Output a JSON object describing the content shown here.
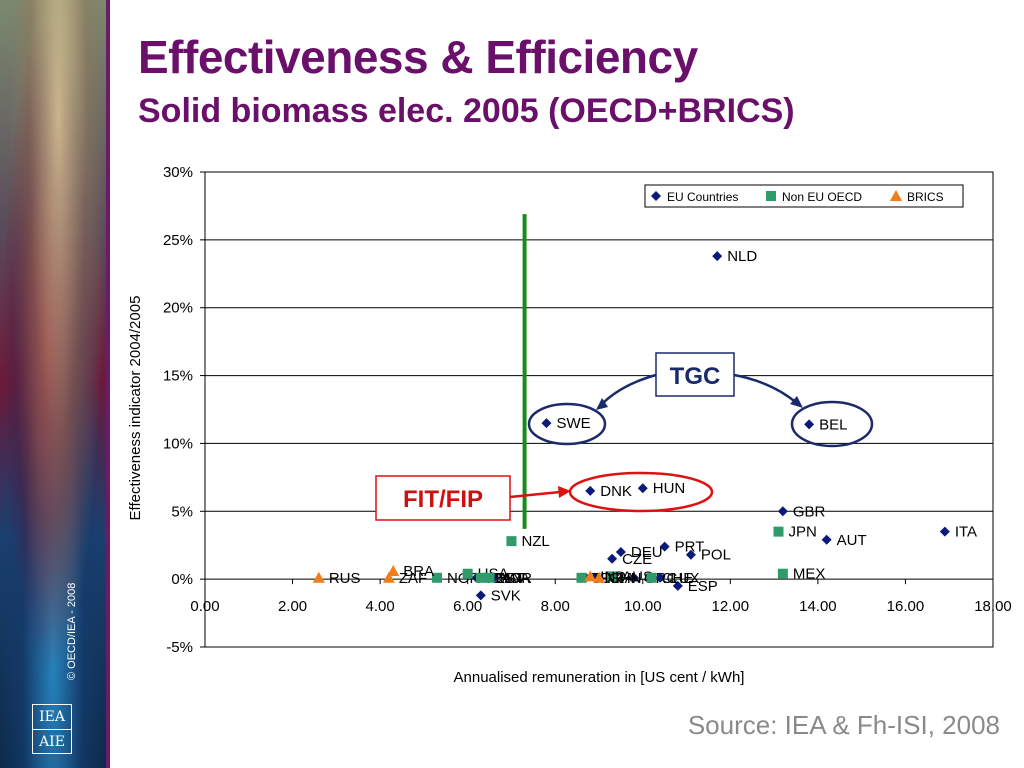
{
  "slide": {
    "title": "Effectiveness & Efficiency",
    "subtitle": "Solid biomass elec. 2005 (OECD+BRICS)",
    "source": "Source: IEA & Fh-ISI, 2008",
    "copyright": "© OECD/IEA - 2008",
    "logo_lines": [
      "IEA",
      "AIE"
    ]
  },
  "annotations": {
    "tgc_label": "TGC",
    "fit_label": "FIT/FIP",
    "threshold_x": 7.3
  },
  "colors": {
    "title": "#6a0f6a",
    "eu": "#0a1a7a",
    "non_eu_oecd": "#2f9a6a",
    "brics": "#f07d1a",
    "threshold_line": "#1a8a1a",
    "tgc_ellipse": "#1a2a6a",
    "fit_ellipse": "#dd1111"
  },
  "chart_data": {
    "type": "scatter",
    "xlabel": "Annualised remuneration in [US cent / kWh]",
    "ylabel": "Effectiveness indicator 2004/2005",
    "xlim": [
      0,
      18
    ],
    "ylim": [
      -5,
      30
    ],
    "xticks": [
      "0.00",
      "2.00",
      "4.00",
      "6.00",
      "8.00",
      "10.00",
      "12.00",
      "14.00",
      "16.00",
      "18.00"
    ],
    "yticks": [
      "30%",
      "25%",
      "20%",
      "15%",
      "10%",
      "5%",
      "0%",
      "-5%"
    ],
    "grid": true,
    "legend_position": "top-right",
    "series": [
      {
        "name": "EU Countries",
        "marker": "diamond",
        "points": [
          {
            "label": "NLD",
            "x": 11.7,
            "y": 23.8
          },
          {
            "label": "SWE",
            "x": 7.8,
            "y": 11.5
          },
          {
            "label": "BEL",
            "x": 13.8,
            "y": 11.4
          },
          {
            "label": "DNK",
            "x": 8.8,
            "y": 6.5
          },
          {
            "label": "HUN",
            "x": 10.0,
            "y": 6.7
          },
          {
            "label": "GBR",
            "x": 13.2,
            "y": 5.0
          },
          {
            "label": "AUT",
            "x": 14.2,
            "y": 2.9
          },
          {
            "label": "ITA",
            "x": 16.9,
            "y": 3.5
          },
          {
            "label": "PRT",
            "x": 10.5,
            "y": 2.4
          },
          {
            "label": "POL",
            "x": 11.1,
            "y": 1.8
          },
          {
            "label": "DEU",
            "x": 9.5,
            "y": 2.0
          },
          {
            "label": "CZE",
            "x": 9.3,
            "y": 1.5
          },
          {
            "label": "SVK",
            "x": 6.3,
            "y": -1.2
          },
          {
            "label": "ESP",
            "x": 10.8,
            "y": -0.5
          },
          {
            "label": "IRL",
            "x": 8.7,
            "y": 0.1
          },
          {
            "label": "FRA",
            "x": 8.9,
            "y": 0.1
          },
          {
            "label": "GRC",
            "x": 9.8,
            "y": 0.1
          },
          {
            "label": "LUX",
            "x": 10.4,
            "y": 0.1
          },
          {
            "label": "FIN",
            "x": 6.2,
            "y": 0.1
          },
          {
            "label": "EST",
            "x": 6.4,
            "y": 0.1
          },
          {
            "label": "LVA",
            "x": 6.6,
            "y": 0.1
          }
        ]
      },
      {
        "name": "Non EU OECD",
        "marker": "square",
        "points": [
          {
            "label": "NZL",
            "x": 7.0,
            "y": 2.8
          },
          {
            "label": "JPN",
            "x": 13.1,
            "y": 3.5
          },
          {
            "label": "MEX",
            "x": 13.2,
            "y": 0.4
          },
          {
            "label": "NOR",
            "x": 5.3,
            "y": 0.1
          },
          {
            "label": "USA",
            "x": 6.0,
            "y": 0.4
          },
          {
            "label": "CAN",
            "x": 6.3,
            "y": 0.1
          },
          {
            "label": "KOR",
            "x": 6.5,
            "y": 0.1
          },
          {
            "label": "AUS",
            "x": 9.3,
            "y": 0.2
          },
          {
            "label": "TUR",
            "x": 8.6,
            "y": 0.1
          },
          {
            "label": "CHE",
            "x": 10.2,
            "y": 0.1
          }
        ]
      },
      {
        "name": "BRICS",
        "marker": "triangle",
        "points": [
          {
            "label": "RUS",
            "x": 2.6,
            "y": 0.1
          },
          {
            "label": "BRA",
            "x": 4.3,
            "y": 0.6
          },
          {
            "label": "ZAF",
            "x": 4.2,
            "y": 0.1
          },
          {
            "label": "IND",
            "x": 8.8,
            "y": 0.2
          },
          {
            "label": "CHN",
            "x": 9.0,
            "y": 0.1
          }
        ]
      }
    ]
  }
}
